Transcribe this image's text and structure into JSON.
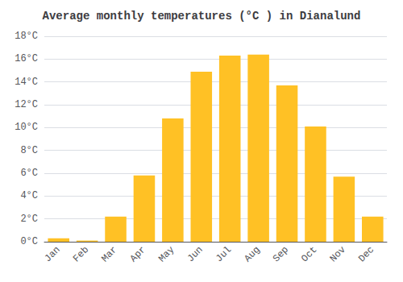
{
  "chart_data": {
    "type": "bar",
    "title": "Average monthly temperatures (°C ) in Dianalund",
    "categories": [
      "Jan",
      "Feb",
      "Mar",
      "Apr",
      "May",
      "Jun",
      "Jul",
      "Aug",
      "Sep",
      "Oct",
      "Nov",
      "Dec"
    ],
    "values": [
      0.3,
      0.1,
      2.2,
      5.8,
      10.8,
      14.9,
      16.3,
      16.4,
      13.7,
      10.1,
      5.7,
      2.2
    ],
    "color": "#FFC125",
    "ylim": [
      0,
      18
    ],
    "yticks": [
      {
        "value": 0,
        "label": "0°C"
      },
      {
        "value": 2,
        "label": "2°C"
      },
      {
        "value": 4,
        "label": "4°C"
      },
      {
        "value": 6,
        "label": "6°C"
      },
      {
        "value": 8,
        "label": "8°C"
      },
      {
        "value": 10,
        "label": "10°C"
      },
      {
        "value": 12,
        "label": "12°C"
      },
      {
        "value": 14,
        "label": "14°C"
      },
      {
        "value": 16,
        "label": "16°C"
      },
      {
        "value": 18,
        "label": "18°C"
      }
    ],
    "grid": true
  }
}
